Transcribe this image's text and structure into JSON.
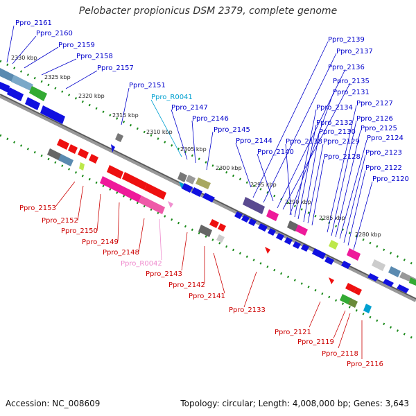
{
  "title": "Pelobacter propionicus DSM 2379, complete genome",
  "footer": {
    "accession": "Accession: NC_008609",
    "topology": "Topology: circular; Length: 4,008,000 bp; Genes: 3,643"
  },
  "ticks": [
    "2330 kbp",
    "2325 kbp",
    "2320 kbp",
    "2315 kbp",
    "2310 kbp",
    "2305 kbp",
    "2300 kbp",
    "2295 kbp",
    "2290 kbp",
    "2285 kbp",
    "2280 kbp"
  ],
  "top_labels": [
    "Ppro_2161",
    "Ppro_2160",
    "Ppro_2159",
    "Ppro_2158",
    "Ppro_2157",
    "Ppro_2151",
    "Ppro_R0041",
    "Ppro_2147",
    "Ppro_2146",
    "Ppro_2145",
    "Ppro_2144",
    "Ppro_2140",
    "Ppro_2139",
    "Ppro_2137",
    "Ppro_2136",
    "Ppro_2135",
    "Ppro_2131",
    "Ppro_2134",
    "Ppro_2132",
    "Ppro_2130",
    "Ppro_2138",
    "Ppro_2129",
    "Ppro_2128",
    "Ppro_2127",
    "Ppro_2126",
    "Ppro_2125",
    "Ppro_2124",
    "Ppro_2123",
    "Ppro_2122",
    "Ppro_2120"
  ],
  "bottom_labels": [
    "Ppro_2153",
    "Ppro_2152",
    "Ppro_2150",
    "Ppro_2149",
    "Ppro_2148",
    "Ppro_R0042",
    "Ppro_2143",
    "Ppro_2142",
    "Ppro_2141",
    "Ppro_2133",
    "Ppro_2121",
    "Ppro_2119",
    "Ppro_2118",
    "Ppro_2116"
  ],
  "colors": {
    "forward_label": "#0000cc",
    "reverse_label": "#cc0000",
    "rrna_top_label": "#00a0d0",
    "rrna_bottom_label": "#ee88cc",
    "forward_gene": "#1010e0",
    "reverse_gene": "#ee1010",
    "tick_mark": "#1a8a1a"
  }
}
